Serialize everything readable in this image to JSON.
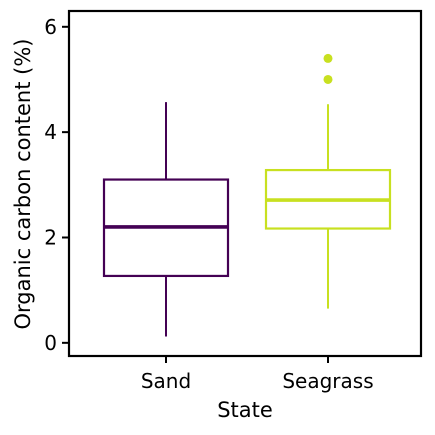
{
  "chart_data": {
    "type": "box",
    "title": "",
    "xlabel": "State",
    "ylabel": "Organic carbon content (%)",
    "ylim": [
      -0.25,
      6.3
    ],
    "yticks": [
      0,
      2,
      4,
      6
    ],
    "categories": [
      "Sand",
      "Seagrass"
    ],
    "grid": false,
    "legend": "none",
    "series": [
      {
        "category": "Sand",
        "color": "#440154",
        "whisker_low": 0.12,
        "q1": 1.27,
        "median": 2.2,
        "q3": 3.1,
        "whisker_high": 4.57,
        "outliers": []
      },
      {
        "category": "Seagrass",
        "color": "#c8e020",
        "whisker_low": 0.65,
        "q1": 2.17,
        "median": 2.71,
        "q3": 3.28,
        "whisker_high": 4.53,
        "outliers": [
          5.0,
          5.4
        ]
      }
    ]
  }
}
